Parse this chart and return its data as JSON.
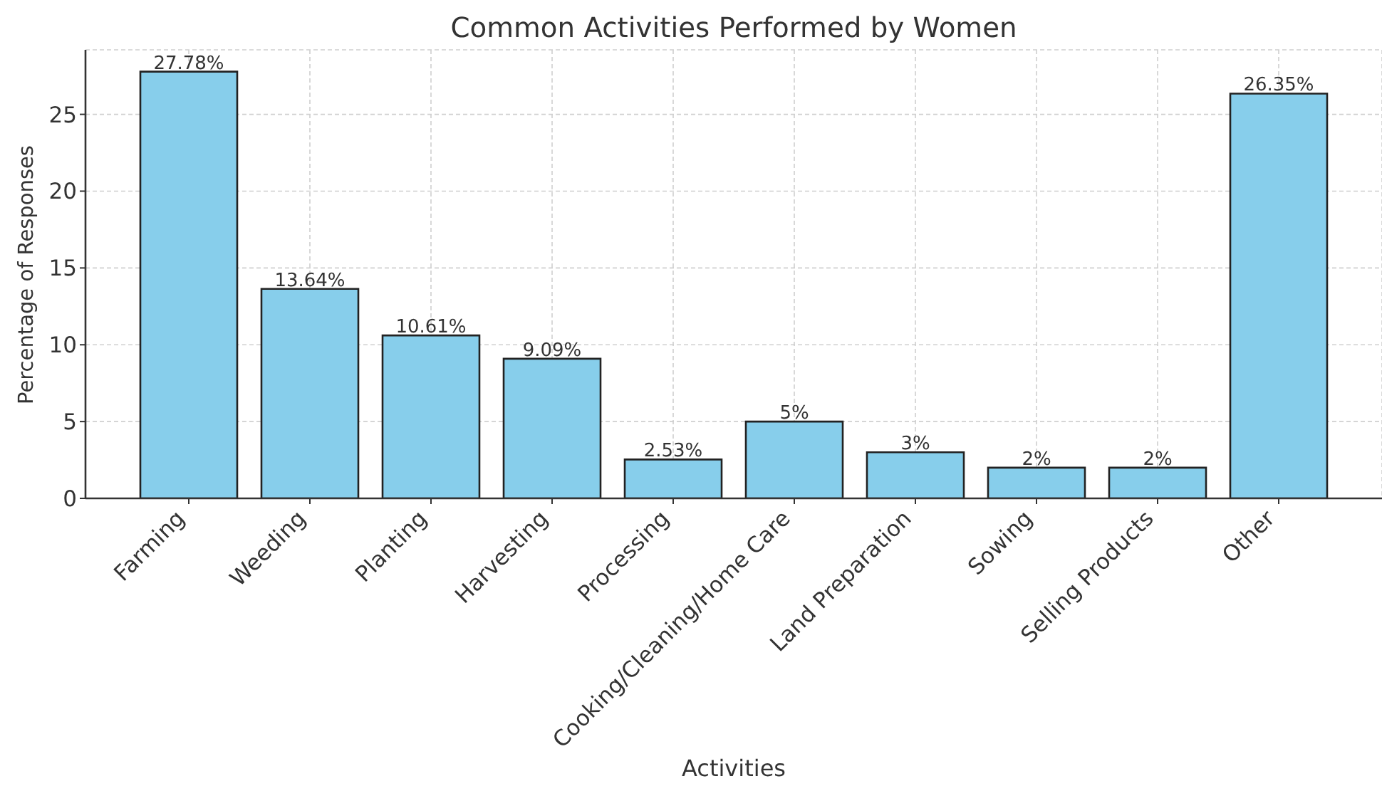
{
  "chart_data": {
    "type": "bar",
    "title": "Common Activities Performed by Women",
    "xlabel": "Activities",
    "ylabel": "Percentage of Responses",
    "categories": [
      "Farming",
      "Weeding",
      "Planting",
      "Harvesting",
      "Processing",
      "Cooking/Cleaning/Home Care",
      "Land Preparation",
      "Sowing",
      "Selling Products",
      "Other"
    ],
    "values": [
      27.78,
      13.64,
      10.61,
      9.09,
      2.53,
      5,
      3,
      2,
      2,
      26.35
    ],
    "value_labels": [
      "27.78%",
      "13.64%",
      "10.61%",
      "9.09%",
      "2.53%",
      "5%",
      "3%",
      "2%",
      "2%",
      "26.35%"
    ],
    "color": "#87ceeb",
    "ylim": [
      0,
      29.2
    ],
    "yticks": [
      0,
      5,
      10,
      15,
      20,
      25
    ],
    "grid": true
  }
}
